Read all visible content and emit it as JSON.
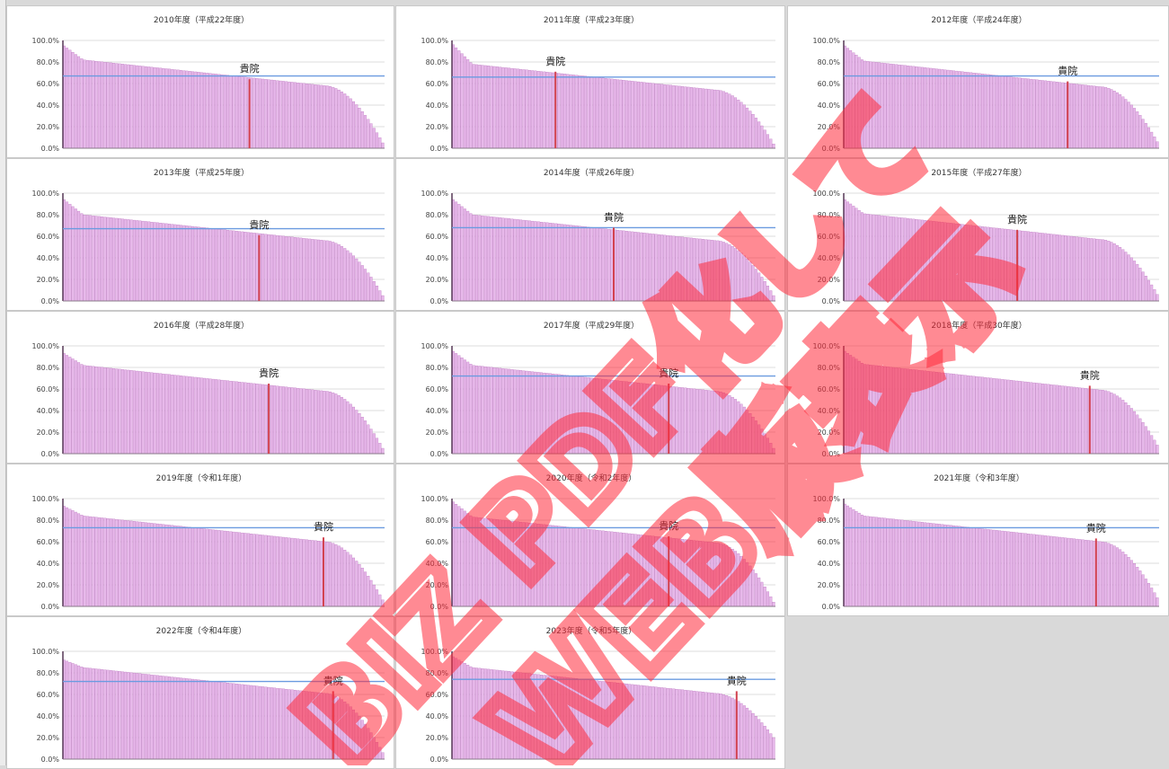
{
  "style": {
    "bar_color": "#e7b8ea",
    "bar_edge_color": "#b46ab8",
    "highlight_color": "#d2424f",
    "average_color": "#6b9be0",
    "axis_color": "#4a2a4a",
    "watermark_color": "#ff2a3a"
  },
  "watermark": {
    "text_1": "BIZ PDF化して",
    "text_2": "WEB版表示"
  },
  "chart_data": [
    {
      "type": "bar",
      "title": "2010年度（平成22年度）",
      "yticks": [
        "100.0%",
        "80.0%",
        "60.0%",
        "40.0%",
        "20.0%",
        "0.0%"
      ],
      "ylim": [
        0,
        100
      ],
      "bars": 110,
      "start": 95,
      "mid": 70,
      "end": 5,
      "average": 67,
      "highlight_position": 0.58,
      "highlight_value": 64,
      "highlight_label": "貴院",
      "grid": true
    },
    {
      "type": "bar",
      "title": "2011年度（平成23年度）",
      "yticks": [
        "100.0%",
        "80.0%",
        "60.0%",
        "40.0%",
        "20.0%",
        "0.0%"
      ],
      "ylim": [
        0,
        100
      ],
      "bars": 110,
      "start": 96,
      "mid": 66,
      "end": 4,
      "average": 66,
      "highlight_position": 0.32,
      "highlight_value": 71,
      "highlight_label": "貴院",
      "grid": true
    },
    {
      "type": "bar",
      "title": "2012年度（平成24年度）",
      "yticks": [
        "100.0%",
        "80.0%",
        "60.0%",
        "40.0%",
        "20.0%",
        "0.0%"
      ],
      "ylim": [
        0,
        100
      ],
      "bars": 110,
      "start": 95,
      "mid": 69,
      "end": 6,
      "average": 67,
      "highlight_position": 0.71,
      "highlight_value": 62,
      "highlight_label": "貴院",
      "grid": true
    },
    {
      "type": "bar",
      "title": "2013年度（平成25年度）",
      "yticks": [
        "100.0%",
        "80.0%",
        "60.0%",
        "40.0%",
        "20.0%",
        "0.0%"
      ],
      "ylim": [
        0,
        100
      ],
      "bars": 110,
      "start": 94,
      "mid": 68,
      "end": 5,
      "average": 67,
      "highlight_position": 0.61,
      "highlight_value": 61,
      "highlight_label": "貴院",
      "grid": true
    },
    {
      "type": "bar",
      "title": "2014年度（平成26年度）",
      "yticks": [
        "100.0%",
        "80.0%",
        "60.0%",
        "40.0%",
        "20.0%",
        "0.0%"
      ],
      "ylim": [
        0,
        100
      ],
      "bars": 110,
      "start": 94,
      "mid": 68,
      "end": 5,
      "average": 68,
      "highlight_position": 0.5,
      "highlight_value": 68,
      "highlight_label": "貴院",
      "grid": true
    },
    {
      "type": "bar",
      "title": "2015年度（平成27年度）",
      "yticks": [
        "100.0%",
        "80.0%",
        "60.0%",
        "40.0%",
        "20.0%",
        "0.0%"
      ],
      "ylim": [
        0,
        100
      ],
      "bars": 110,
      "start": 94,
      "mid": 69,
      "end": 6,
      "average": null,
      "highlight_position": 0.55,
      "highlight_value": 66,
      "highlight_label": "貴院",
      "grid": true
    },
    {
      "type": "bar",
      "title": "2016年度（平成28年度）",
      "yticks": [
        "100.0%",
        "80.0%",
        "60.0%",
        "40.0%",
        "20.0%",
        "0.0%"
      ],
      "ylim": [
        0,
        100
      ],
      "bars": 110,
      "start": 93,
      "mid": 70,
      "end": 5,
      "average": null,
      "highlight_position": 0.64,
      "highlight_value": 65,
      "highlight_label": "貴院",
      "grid": true
    },
    {
      "type": "bar",
      "title": "2017年度（平成29年度）",
      "yticks": [
        "100.0%",
        "80.0%",
        "60.0%",
        "40.0%",
        "20.0%",
        "0.0%"
      ],
      "ylim": [
        0,
        100
      ],
      "bars": 110,
      "start": 95,
      "mid": 70,
      "end": 5,
      "average": 72,
      "highlight_position": 0.67,
      "highlight_value": 65,
      "highlight_label": "貴院",
      "grid": true
    },
    {
      "type": "bar",
      "title": "2018年度（平成30年度）",
      "yticks": [
        "100.0%",
        "80.0%",
        "60.0%",
        "40.0%",
        "20.0%",
        "0.0%"
      ],
      "ylim": [
        0,
        100
      ],
      "bars": 110,
      "start": 95,
      "mid": 71,
      "end": 8,
      "average": null,
      "highlight_position": 0.78,
      "highlight_value": 63,
      "highlight_label": "貴院",
      "grid": true
    },
    {
      "type": "bar",
      "title": "2019年度（令和1年度）",
      "yticks": [
        "100.0%",
        "80.0%",
        "60.0%",
        "40.0%",
        "20.0%",
        "0.0%"
      ],
      "ylim": [
        0,
        100
      ],
      "bars": 110,
      "start": 93,
      "mid": 72,
      "end": 6,
      "average": 73,
      "highlight_position": 0.81,
      "highlight_value": 64,
      "highlight_label": "貴院",
      "grid": true
    },
    {
      "type": "bar",
      "title": "2020年度（令和2年度）",
      "yticks": [
        "100.0%",
        "80.0%",
        "60.0%",
        "40.0%",
        "20.0%",
        "0.0%"
      ],
      "ylim": [
        0,
        100
      ],
      "bars": 110,
      "start": 97,
      "mid": 71,
      "end": 4,
      "average": 73,
      "highlight_position": 0.67,
      "highlight_value": 65,
      "highlight_label": "貴院",
      "grid": true
    },
    {
      "type": "bar",
      "title": "2021年度（令和3年度）",
      "yticks": [
        "100.0%",
        "80.0%",
        "60.0%",
        "40.0%",
        "20.0%",
        "0.0%"
      ],
      "ylim": [
        0,
        100
      ],
      "bars": 110,
      "start": 95,
      "mid": 72,
      "end": 8,
      "average": 73,
      "highlight_position": 0.8,
      "highlight_value": 63,
      "highlight_label": "貴院",
      "grid": true
    },
    {
      "type": "bar",
      "title": "2022年度（令和4年度）",
      "yticks": [
        "100.0%",
        "80.0%",
        "60.0%",
        "40.0%",
        "20.0%",
        "0.0%"
      ],
      "ylim": [
        0,
        100
      ],
      "bars": 110,
      "start": 92,
      "mid": 73,
      "end": 6,
      "average": 72,
      "highlight_position": 0.84,
      "highlight_value": 63,
      "highlight_label": "貴院",
      "grid": true
    },
    {
      "type": "bar",
      "title": "2023年度（令和5年度）",
      "yticks": [
        "100.0%",
        "80.0%",
        "60.0%",
        "40.0%",
        "20.0%",
        "0.0%"
      ],
      "ylim": [
        0,
        100
      ],
      "bars": 110,
      "start": 95,
      "mid": 73,
      "end": 20,
      "average": 74,
      "highlight_position": 0.88,
      "highlight_value": 63,
      "highlight_label": "貴院",
      "grid": true
    }
  ]
}
